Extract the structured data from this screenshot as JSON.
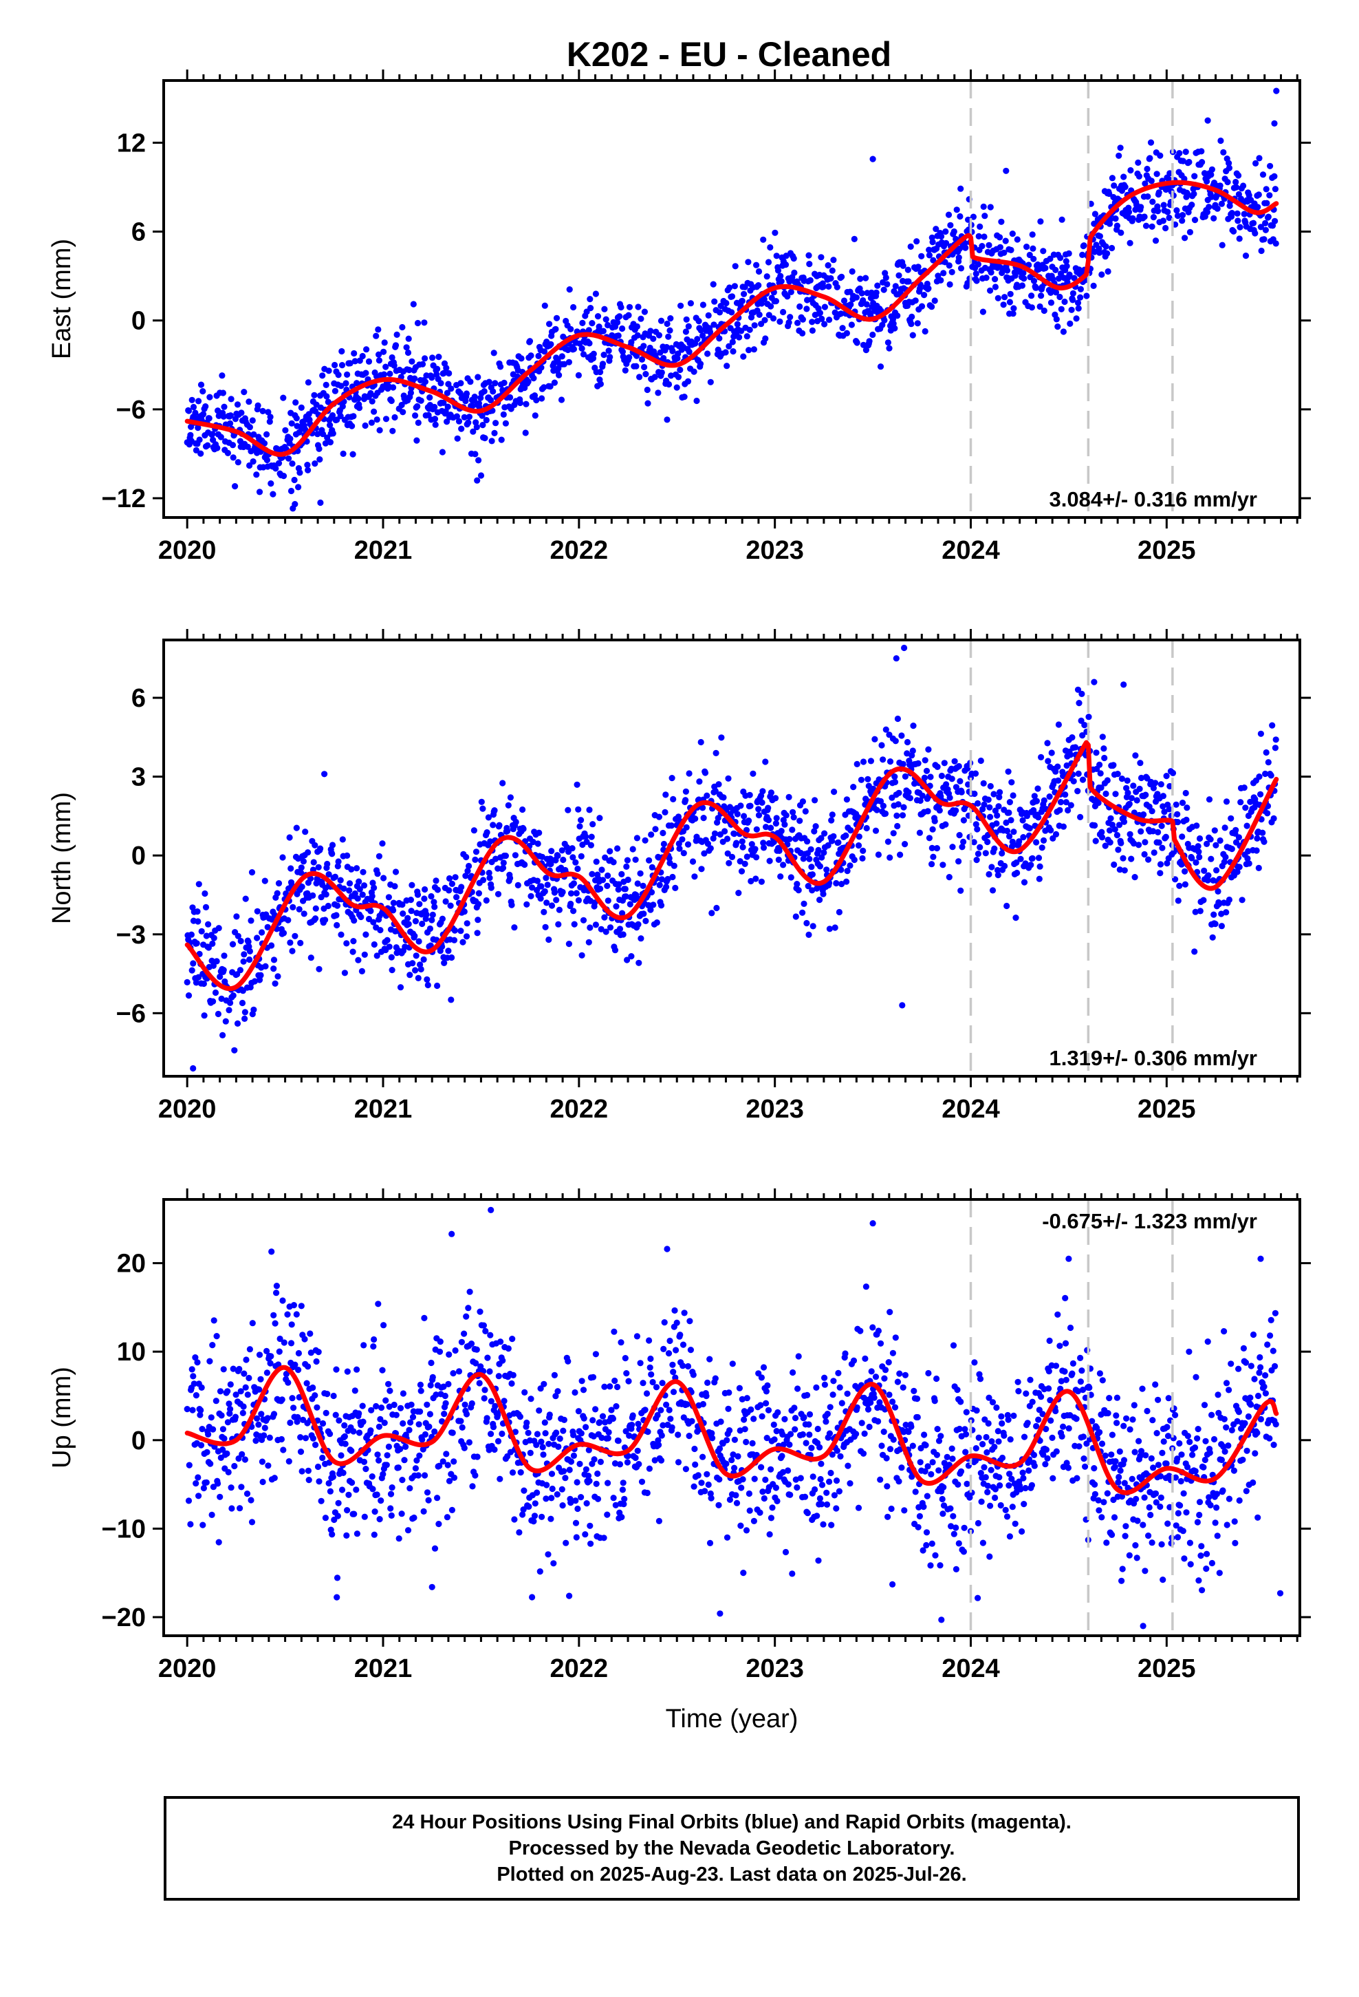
{
  "title": "K202  - EU - Cleaned",
  "xlabel": "Time (year)",
  "footer": {
    "line1": "24 Hour Positions Using Final Orbits (blue) and Rapid Orbits (magenta).",
    "line2": "Processed by the Nevada Geodetic Laboratory.",
    "line3": "Plotted on 2025-Aug-23. Last data on 2025-Jul-26."
  },
  "colors": {
    "points": "#0000ff",
    "model": "#ff0000",
    "event_lines": "#c8c8c8",
    "axes": "#000000"
  },
  "chart_data": [
    {
      "type": "scatter",
      "name": "east",
      "ylabel": "East (mm)",
      "rate_label": "3.084+/- 0.316 mm/yr",
      "xlim": [
        2019.88,
        2025.68
      ],
      "ylim": [
        -13.3,
        16.2
      ],
      "xticks": [
        2020,
        2021,
        2022,
        2023,
        2024,
        2025
      ],
      "yticks": [
        -12,
        -6,
        0,
        6,
        12
      ],
      "grid": false,
      "event_lines": [
        2024.0,
        2024.6,
        2025.03
      ],
      "model": {
        "x": [
          2020.0,
          2020.25,
          2020.5,
          2020.75,
          2021.0,
          2021.25,
          2021.5,
          2021.75,
          2022.0,
          2022.25,
          2022.5,
          2022.75,
          2023.0,
          2023.25,
          2023.5,
          2023.75,
          2023.95,
          2024.0,
          2024.01,
          2024.25,
          2024.45,
          2024.59,
          2024.6,
          2024.61,
          2024.8,
          2025.03,
          2025.25,
          2025.45,
          2025.56
        ],
        "y": [
          -6.8,
          -7.5,
          -9.0,
          -5.6,
          -4.0,
          -4.8,
          -6.1,
          -3.4,
          -1.0,
          -1.8,
          -3.0,
          -0.3,
          2.2,
          1.6,
          0.1,
          2.9,
          5.4,
          5.6,
          4.3,
          3.7,
          2.2,
          3.1,
          4.0,
          5.6,
          8.3,
          9.3,
          8.8,
          7.3,
          7.9
        ]
      },
      "scatter": {
        "noise": 1.5,
        "seed": 11,
        "outliers": [
          [
            2023.5,
            10.9
          ],
          [
            2024.18,
            10.1
          ],
          [
            2025.56,
            15.5
          ],
          [
            2025.55,
            13.3
          ],
          [
            2025.21,
            13.5
          ],
          [
            2020.55,
            -12.4
          ],
          [
            2020.68,
            -12.3
          ],
          [
            2021.48,
            -10.8
          ],
          [
            2022.45,
            -6.7
          ]
        ]
      }
    },
    {
      "type": "scatter",
      "name": "north",
      "ylabel": "North (mm)",
      "rate_label": "1.319+/- 0.306 mm/yr",
      "xlim": [
        2019.88,
        2025.68
      ],
      "ylim": [
        -8.4,
        8.2
      ],
      "xticks": [
        2020,
        2021,
        2022,
        2023,
        2024,
        2025
      ],
      "yticks": [
        -6,
        -3,
        0,
        3,
        6
      ],
      "grid": false,
      "event_lines": [
        2024.0,
        2024.6,
        2025.03
      ],
      "model": {
        "x": [
          2020.0,
          2020.25,
          2020.6,
          2020.85,
          2021.0,
          2021.25,
          2021.6,
          2021.85,
          2022.0,
          2022.25,
          2022.6,
          2022.85,
          2023.0,
          2023.25,
          2023.6,
          2023.85,
          2024.0,
          2024.25,
          2024.59,
          2024.6,
          2024.61,
          2024.85,
          2025.03,
          2025.04,
          2025.25,
          2025.56
        ],
        "y": [
          -3.4,
          -5.0,
          -0.8,
          -1.9,
          -2.0,
          -3.6,
          0.6,
          -0.7,
          -0.8,
          -2.3,
          1.9,
          0.8,
          0.7,
          -1.0,
          3.2,
          2.0,
          1.9,
          0.2,
          4.3,
          4.2,
          2.6,
          1.4,
          1.3,
          0.6,
          -1.2,
          2.9
        ]
      },
      "scatter": {
        "noise": 1.1,
        "seed": 23,
        "outliers": [
          [
            2023.62,
            7.5
          ],
          [
            2023.66,
            7.9
          ],
          [
            2023.65,
            -5.7
          ],
          [
            2024.63,
            6.6
          ],
          [
            2024.78,
            6.5
          ],
          [
            2020.03,
            -8.1
          ],
          [
            2020.7,
            3.1
          ]
        ]
      }
    },
    {
      "type": "scatter",
      "name": "up",
      "ylabel": "Up (mm)",
      "rate_label": "-0.675+/- 1.323 mm/yr",
      "xlim": [
        2019.88,
        2025.68
      ],
      "ylim": [
        -22.1,
        27.2
      ],
      "xticks": [
        2020,
        2021,
        2022,
        2023,
        2024,
        2025
      ],
      "yticks": [
        -20,
        -10,
        0,
        10,
        20
      ],
      "grid": false,
      "event_lines": [
        2024.0,
        2024.6,
        2025.03
      ],
      "model": {
        "x": [
          2020.0,
          2020.25,
          2020.5,
          2020.75,
          2021.0,
          2021.25,
          2021.5,
          2021.75,
          2022.0,
          2022.25,
          2022.5,
          2022.75,
          2023.0,
          2023.25,
          2023.5,
          2023.75,
          2024.0,
          2024.25,
          2024.5,
          2024.75,
          2025.0,
          2025.25,
          2025.5,
          2025.56
        ],
        "y": [
          0.8,
          0.0,
          8.2,
          -2.4,
          0.5,
          -0.2,
          7.4,
          -3.2,
          -0.5,
          -1.2,
          6.6,
          -3.8,
          -1.0,
          -1.8,
          6.3,
          -4.6,
          -1.8,
          -2.6,
          5.5,
          -5.6,
          -3.2,
          -4.3,
          4.0,
          3.0
        ]
      },
      "scatter": {
        "noise": 5.0,
        "seed": 37,
        "outliers": [
          [
            2021.55,
            26.0
          ],
          [
            2021.35,
            23.3
          ],
          [
            2022.45,
            21.6
          ],
          [
            2023.5,
            24.5
          ],
          [
            2024.5,
            20.5
          ],
          [
            2025.48,
            20.5
          ],
          [
            2020.43,
            21.3
          ],
          [
            2023.85,
            -20.3
          ],
          [
            2024.88,
            -21.0
          ],
          [
            2022.72,
            -19.6
          ],
          [
            2025.58,
            -17.3
          ],
          [
            2021.25,
            -16.6
          ],
          [
            2021.95,
            -17.6
          ],
          [
            2023.6,
            -16.3
          ]
        ]
      }
    }
  ]
}
